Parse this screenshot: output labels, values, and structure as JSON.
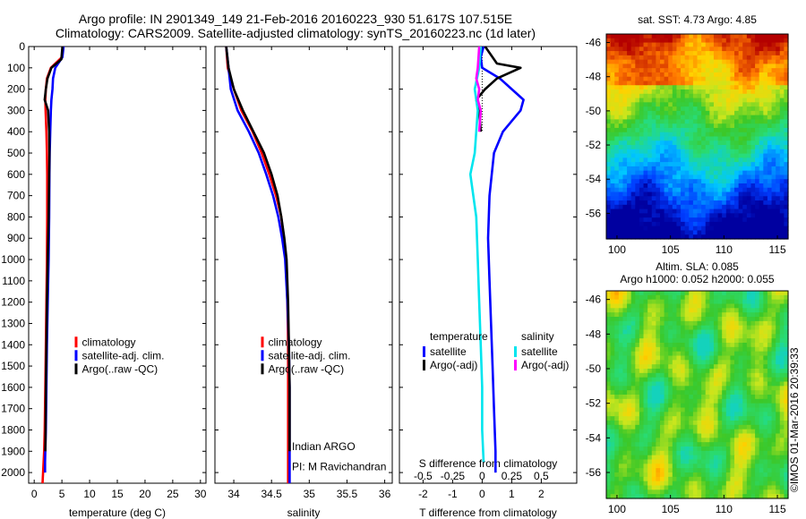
{
  "header": {
    "title_line1": "Argo profile: IN 2901349_149 21-Feb-2016 20160223_930 51.617S 107.515E",
    "title_line2": "Climatology: CARS2009. Satellite-adjusted climatology: synTS_20160223.nc (1d later)"
  },
  "colors": {
    "climatology": "#ff0000",
    "satellite": "#0000ff",
    "argo": "#000000",
    "sat_salinity": "#00e5ee",
    "argo_salinity": "#ff00ff"
  },
  "chart_data": [
    {
      "id": "temperature",
      "type": "line",
      "xlabel": "temperature (deg C)",
      "ylabel": "",
      "xlim": [
        -1,
        31
      ],
      "ylim": [
        2050,
        0
      ],
      "xticks": [
        0,
        5,
        10,
        15,
        20,
        25,
        30
      ],
      "yticks": [
        0,
        100,
        200,
        300,
        400,
        500,
        600,
        700,
        800,
        900,
        1000,
        1100,
        1200,
        1300,
        1400,
        1500,
        1600,
        1700,
        1800,
        1900,
        2000
      ],
      "legend": {
        "position": "lower-center",
        "labels": [
          "climatology",
          "satellite-adj. clim.",
          "Argo(..raw -QC)"
        ]
      },
      "series": [
        {
          "name": "climatology",
          "color": "#ff0000",
          "x": [
            5.2,
            5.0,
            3.0,
            2.3,
            2.1,
            2.0,
            2.05,
            2.2,
            2.3,
            2.35,
            2.35,
            2.3,
            2.2,
            2.1,
            2.0,
            1.9,
            1.8,
            1.7,
            1.6,
            1.5
          ],
          "y": [
            0,
            50,
            100,
            150,
            200,
            250,
            300,
            400,
            500,
            600,
            800,
            1000,
            1200,
            1400,
            1600,
            1800,
            1900,
            1950,
            2000,
            2050
          ]
        },
        {
          "name": "satellite-adj. clim.",
          "color": "#0000ff",
          "x": [
            5.3,
            5.1,
            3.8,
            3.4,
            3.3,
            3.1,
            3.0,
            2.9,
            2.8,
            2.75,
            2.7,
            2.6,
            2.45,
            2.3,
            2.2,
            2.1,
            2.0,
            1.95,
            1.95
          ],
          "y": [
            0,
            50,
            100,
            150,
            200,
            250,
            300,
            400,
            500,
            600,
            800,
            1000,
            1200,
            1400,
            1600,
            1800,
            1900,
            1950,
            2000
          ]
        },
        {
          "name": "Argo(..raw -QC)",
          "color": "#000000",
          "x": [
            5.1,
            4.9,
            3.1,
            2.4,
            2.1,
            1.9,
            2.5,
            2.7,
            2.75,
            2.7,
            2.6,
            2.45,
            2.3,
            2.2,
            2.1,
            2.05,
            2.0
          ],
          "y": [
            0,
            60,
            100,
            150,
            200,
            250,
            300,
            400,
            500,
            600,
            800,
            1000,
            1200,
            1400,
            1600,
            1800,
            1900
          ]
        }
      ]
    },
    {
      "id": "salinity",
      "type": "line",
      "xlabel": "salinity",
      "ylabel": "",
      "xlim": [
        33.75,
        36.1
      ],
      "ylim": [
        2050,
        0
      ],
      "xticks": [
        34,
        34.5,
        35,
        35.5,
        36
      ],
      "annotations": [
        "Indian ARGO",
        "PI: M Ravichandran"
      ],
      "legend": {
        "position": "lower-center",
        "labels": [
          "climatology",
          "satellite-adj. clim.",
          "Argo(..raw -QC)"
        ]
      },
      "series": [
        {
          "name": "climatology",
          "color": "#ff0000",
          "x": [
            33.9,
            33.92,
            34.0,
            34.1,
            34.25,
            34.37,
            34.47,
            34.56,
            34.63,
            34.66,
            34.69,
            34.71,
            34.72,
            34.72,
            34.72,
            34.72
          ],
          "y": [
            0,
            100,
            200,
            300,
            400,
            500,
            600,
            700,
            800,
            900,
            1000,
            1200,
            1400,
            1600,
            1800,
            2050
          ]
        },
        {
          "name": "satellite-adj. clim.",
          "color": "#0000ff",
          "x": [
            33.9,
            33.93,
            33.96,
            34.05,
            34.2,
            34.33,
            34.43,
            34.52,
            34.59,
            34.64,
            34.68,
            34.71,
            34.73,
            34.74,
            34.74,
            34.74,
            34.74
          ],
          "y": [
            0,
            100,
            200,
            300,
            400,
            500,
            600,
            700,
            800,
            900,
            1000,
            1200,
            1400,
            1600,
            1800,
            2000,
            2050
          ]
        },
        {
          "name": "Argo(..raw -QC)",
          "color": "#000000",
          "x": [
            33.9,
            33.93,
            34.0,
            34.12,
            34.26,
            34.4,
            34.5,
            34.58,
            34.63,
            34.67,
            34.7,
            34.72,
            34.73,
            34.74,
            34.74
          ],
          "y": [
            0,
            100,
            200,
            300,
            400,
            500,
            600,
            700,
            800,
            900,
            1000,
            1200,
            1400,
            1600,
            1900
          ]
        }
      ]
    },
    {
      "id": "difference",
      "type": "line",
      "xlabel": "T difference from climatology",
      "x2label": "S difference from climatology",
      "ylabel": "",
      "xlim": [
        -2.8,
        3.2
      ],
      "ylim": [
        2050,
        0
      ],
      "xticks": [
        -2,
        -1,
        0,
        1,
        2
      ],
      "x2ticks": [
        "-0.5",
        "-0.25",
        "0",
        "0.25",
        "0.5"
      ],
      "x2tick_positions": [
        -2,
        -1,
        0,
        1,
        2
      ],
      "legend": {
        "position": "lower-center",
        "headers": [
          "temperature",
          "salinity"
        ],
        "labels": [
          "satellite",
          "Argo(-adj)",
          "satellite",
          "Argo(-adj)"
        ]
      },
      "series": [
        {
          "name": "temperature satellite",
          "color": "#0000ff",
          "x": [
            0.05,
            -0.05,
            0.0,
            0.6,
            1.0,
            1.4,
            1.3,
            0.7,
            0.4,
            0.25,
            0.2,
            0.25,
            0.3,
            0.35,
            0.4,
            0.45,
            0.45
          ],
          "y": [
            0,
            50,
            100,
            150,
            200,
            250,
            300,
            400,
            500,
            700,
            900,
            1100,
            1300,
            1500,
            1700,
            1900,
            2000
          ]
        },
        {
          "name": "temperature Argo(-adj)",
          "color": "#000000",
          "x": [
            0.1,
            0.5,
            1.3,
            0.5,
            0.1,
            -0.2,
            -0.1,
            -0.05
          ],
          "y": [
            0,
            80,
            100,
            150,
            200,
            250,
            300,
            400
          ]
        },
        {
          "name": "salinity satellite",
          "color": "#00e5ee",
          "x": [
            -0.05,
            -0.1,
            -0.25,
            -0.15,
            -0.2,
            -0.25,
            -0.4,
            -0.2,
            -0.15,
            -0.1,
            -0.05,
            0.0,
            0.0,
            0.05
          ],
          "y": [
            0,
            100,
            200,
            300,
            400,
            500,
            600,
            800,
            1000,
            1200,
            1400,
            1600,
            1800,
            1950
          ]
        },
        {
          "name": "salinity Argo(-adj)",
          "color": "#ff00ff",
          "x": [
            -0.1,
            -0.15,
            -0.2,
            -0.1,
            -0.15,
            -0.05,
            -0.1
          ],
          "y": [
            0,
            100,
            150,
            200,
            250,
            300,
            400
          ]
        }
      ]
    },
    {
      "id": "sst_map",
      "type": "heatmap",
      "title": "sat. SST: 4.73 Argo: 4.85",
      "xlim": [
        99,
        116
      ],
      "ylim": [
        -57.5,
        -45.5
      ],
      "xticks": [
        100,
        105,
        110,
        115
      ],
      "yticks": [
        -46,
        -48,
        -50,
        -52,
        -54,
        -56
      ]
    },
    {
      "id": "sla_map",
      "type": "heatmap",
      "title": "Altim. SLA: 0.085",
      "subtitle": "Argo h1000: 0.052 h2000: 0.055",
      "xlim": [
        99,
        116
      ],
      "ylim": [
        -57.5,
        -45.5
      ],
      "xticks": [
        100,
        105,
        110,
        115
      ],
      "yticks": [
        -46,
        -48,
        -50,
        -52,
        -54,
        -56
      ]
    }
  ],
  "watermark": "©IMOS 01-Mar-2016 20:39:33"
}
